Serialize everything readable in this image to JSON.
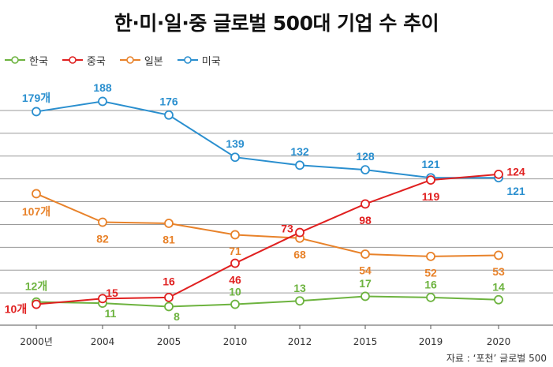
{
  "title": "한·미·일·중 글로벌 500대 기업 수 추이",
  "source": "자료 : ‘포천’ 글로벌 500",
  "chart_data": {
    "type": "line",
    "title": "한·미·일·중 글로벌 500대 기업 수 추이",
    "categories": [
      "2000년",
      "2004",
      "2005",
      "2010",
      "2012",
      "2015",
      "2019",
      "2020"
    ],
    "ylim": [
      0,
      200
    ],
    "grid": true,
    "legend_position": "top-left",
    "series": [
      {
        "name": "한국",
        "color": "#6db33f",
        "values": [
          12,
          11,
          8,
          10,
          13,
          17,
          16,
          14
        ],
        "labels": [
          "12개",
          "11",
          "8",
          "10",
          "13",
          "17",
          "16",
          "14"
        ]
      },
      {
        "name": "중국",
        "color": "#e02020",
        "values": [
          10,
          15,
          16,
          46,
          73,
          98,
          119,
          124
        ],
        "labels": [
          "10개",
          "15",
          "16",
          "46",
          "73",
          "98",
          "119",
          "124"
        ]
      },
      {
        "name": "일본",
        "color": "#e8822a",
        "values": [
          107,
          82,
          81,
          71,
          68,
          54,
          52,
          53
        ],
        "labels": [
          "107개",
          "82",
          "81",
          "71",
          "68",
          "54",
          "52",
          "53"
        ]
      },
      {
        "name": "미국",
        "color": "#2a8fcf",
        "values": [
          179,
          188,
          176,
          139,
          132,
          128,
          121,
          121
        ],
        "labels": [
          "179개",
          "188",
          "176",
          "139",
          "132",
          "128",
          "121",
          "121"
        ]
      }
    ]
  }
}
